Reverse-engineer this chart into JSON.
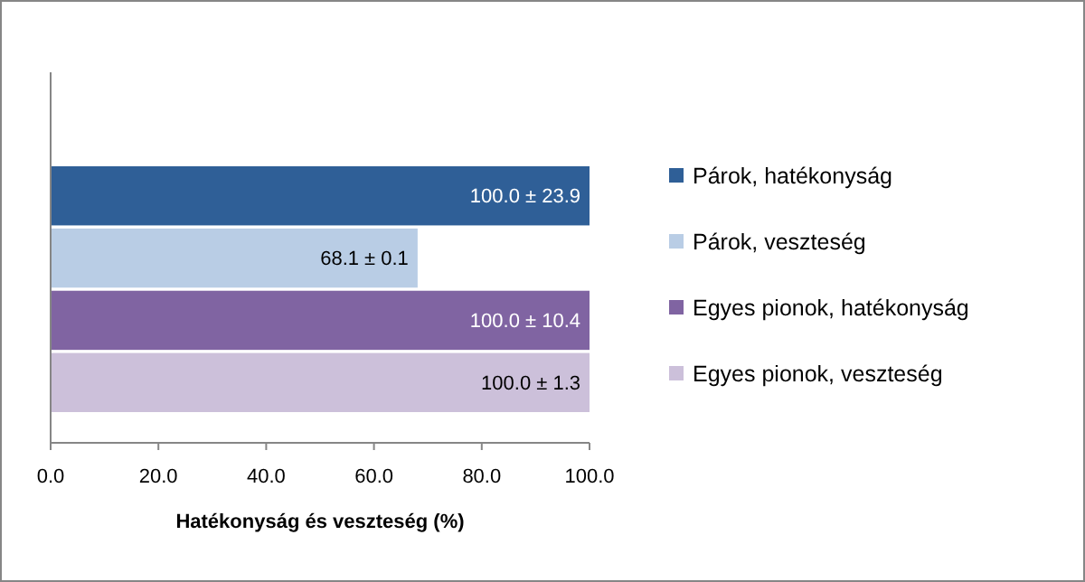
{
  "chart_data": {
    "type": "bar",
    "orientation": "horizontal",
    "categories": [
      null
    ],
    "xlabel": "Hatékonyság és veszteség (%)",
    "xlim": [
      0,
      100
    ],
    "xticks": [
      {
        "value": 0,
        "label": "0.0"
      },
      {
        "value": 20,
        "label": "20.0"
      },
      {
        "value": 40,
        "label": "40.0"
      },
      {
        "value": 60,
        "label": "60.0"
      },
      {
        "value": 80,
        "label": "80.0"
      },
      {
        "value": 100,
        "label": "100.0"
      }
    ],
    "grid": false,
    "legend": "right",
    "series": [
      {
        "name": "Párok, hatékonyság",
        "color": "#2f5f97",
        "values": [
          100.0
        ],
        "value_labels": [
          "100.0 ± 23.9"
        ]
      },
      {
        "name": "Párok, veszteség",
        "color": "#b9cde5",
        "values": [
          68.1
        ],
        "value_labels": [
          "68.1 ± 0.1"
        ]
      },
      {
        "name": "Egyes pionok, hatékonyság",
        "color": "#8064a2",
        "values": [
          100.0
        ],
        "value_labels": [
          "100.0 ± 10.4"
        ]
      },
      {
        "name": "Egyes pionok, veszteség",
        "color": "#ccc0da",
        "values": [
          100.0
        ],
        "value_labels": [
          "100.0 ± 1.3"
        ]
      }
    ]
  }
}
